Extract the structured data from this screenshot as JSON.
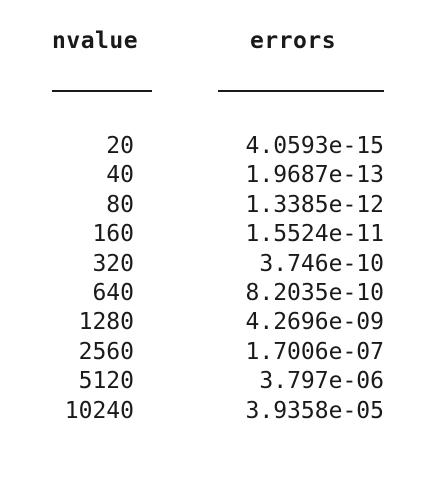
{
  "table": {
    "headers": {
      "nvalue": "nvalue",
      "errors": "errors"
    },
    "rows": [
      {
        "nvalue": "20",
        "errors": "4.0593e-15"
      },
      {
        "nvalue": "40",
        "errors": "1.9687e-13"
      },
      {
        "nvalue": "80",
        "errors": "1.3385e-12"
      },
      {
        "nvalue": "160",
        "errors": "1.5524e-11"
      },
      {
        "nvalue": "320",
        "errors": "3.746e-10"
      },
      {
        "nvalue": "640",
        "errors": "8.2035e-10"
      },
      {
        "nvalue": "1280",
        "errors": "4.2696e-09"
      },
      {
        "nvalue": "2560",
        "errors": "1.7006e-07"
      },
      {
        "nvalue": "5120",
        "errors": "3.797e-06"
      },
      {
        "nvalue": "10240",
        "errors": "3.9358e-05"
      }
    ]
  }
}
